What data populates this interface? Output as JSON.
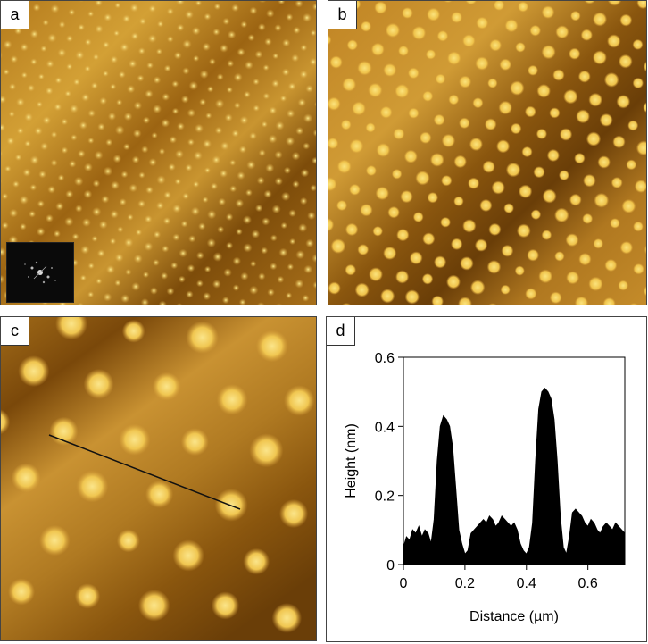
{
  "panels": {
    "a": {
      "label": "a"
    },
    "b": {
      "label": "b"
    },
    "c": {
      "label": "c"
    },
    "d": {
      "label": "d"
    }
  },
  "colors": {
    "afm_dark": "#5a3606",
    "afm_mid": "#a86e14",
    "afm_light": "#d9a63c",
    "dot": "#f6e27a",
    "profile_fill": "#000000"
  },
  "chart_data": {
    "type": "area",
    "xlabel": "Distance (µm)",
    "ylabel": "Height (nm)",
    "xlim": [
      0,
      0.72
    ],
    "ylim": [
      0,
      0.6
    ],
    "xticks": [
      "0",
      "0.2",
      "0.4",
      "0.6"
    ],
    "yticks": [
      "0",
      "0.2",
      "0.4",
      "0.6"
    ],
    "grid": false,
    "series": [
      {
        "x": [
          0,
          0.01,
          0.02,
          0.03,
          0.04,
          0.05,
          0.06,
          0.07,
          0.08,
          0.09,
          0.1,
          0.11,
          0.12,
          0.13,
          0.14,
          0.15,
          0.16,
          0.17,
          0.18,
          0.19,
          0.2,
          0.21,
          0.22,
          0.23,
          0.24,
          0.25,
          0.26,
          0.27,
          0.28,
          0.29,
          0.3,
          0.31,
          0.32,
          0.33,
          0.34,
          0.35,
          0.36,
          0.37,
          0.38,
          0.39,
          0.4,
          0.41,
          0.42,
          0.43,
          0.44,
          0.45,
          0.46,
          0.47,
          0.48,
          0.49,
          0.5,
          0.51,
          0.52,
          0.53,
          0.54,
          0.55,
          0.56,
          0.57,
          0.58,
          0.59,
          0.6,
          0.61,
          0.62,
          0.63,
          0.64,
          0.65,
          0.66,
          0.67,
          0.68,
          0.69,
          0.7,
          0.71,
          0.72
        ],
        "values": [
          0.05,
          0.08,
          0.07,
          0.1,
          0.09,
          0.11,
          0.08,
          0.1,
          0.09,
          0.06,
          0.13,
          0.3,
          0.4,
          0.43,
          0.42,
          0.4,
          0.34,
          0.22,
          0.1,
          0.06,
          0.03,
          0.04,
          0.09,
          0.1,
          0.11,
          0.12,
          0.13,
          0.12,
          0.14,
          0.13,
          0.11,
          0.12,
          0.14,
          0.13,
          0.12,
          0.11,
          0.12,
          0.1,
          0.06,
          0.04,
          0.03,
          0.05,
          0.12,
          0.3,
          0.45,
          0.5,
          0.51,
          0.5,
          0.48,
          0.42,
          0.3,
          0.14,
          0.05,
          0.03,
          0.08,
          0.15,
          0.16,
          0.15,
          0.14,
          0.12,
          0.11,
          0.13,
          0.12,
          0.1,
          0.09,
          0.11,
          0.12,
          0.11,
          0.1,
          0.12,
          0.11,
          0.1,
          0.09
        ]
      }
    ]
  }
}
